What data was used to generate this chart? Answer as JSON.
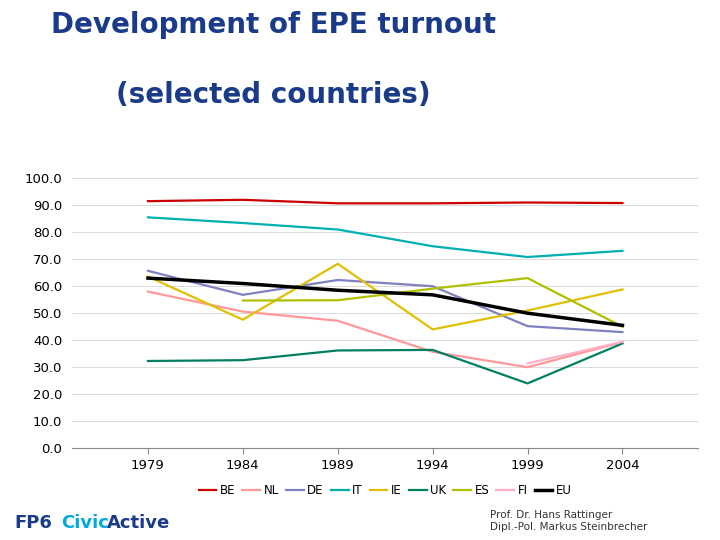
{
  "title_line1": "Development of EPE turnout",
  "title_line2": "(selected countries)",
  "years": [
    1979,
    1984,
    1989,
    1994,
    1999,
    2004
  ],
  "series": {
    "BE": {
      "color": "#cc0000",
      "values": [
        91.5,
        92.0,
        90.7,
        90.7,
        91.0,
        90.8
      ]
    },
    "NL": {
      "color": "#ff9999",
      "values": [
        58.0,
        50.6,
        47.2,
        35.7,
        30.0,
        39.3
      ]
    },
    "DE": {
      "color": "#8080c0",
      "values": [
        65.7,
        56.8,
        62.3,
        60.0,
        45.2,
        43.0
      ]
    },
    "IT": {
      "color": "#00b0b0",
      "values": [
        85.5,
        83.4,
        81.0,
        74.8,
        70.8,
        73.1
      ]
    },
    "IE": {
      "color": "#e0c000",
      "values": [
        63.6,
        47.6,
        68.3,
        44.0,
        51.0,
        58.8
      ]
    },
    "UK": {
      "color": "#008060",
      "values": [
        32.3,
        32.6,
        36.2,
        36.4,
        24.0,
        38.8
      ]
    },
    "ES": {
      "color": "#b0c000",
      "values": [
        null,
        54.7,
        54.8,
        59.1,
        63.0,
        45.0
      ]
    },
    "FI": {
      "color": "#ffb0c8",
      "values": [
        null,
        null,
        null,
        null,
        31.4,
        39.4
      ]
    },
    "EU": {
      "color": "#000000",
      "values": [
        63.0,
        61.0,
        58.5,
        56.8,
        50.0,
        45.5
      ]
    }
  },
  "ylim": [
    0,
    100
  ],
  "yticks": [
    0,
    10,
    20,
    30,
    40,
    50,
    60,
    70,
    80,
    90,
    100
  ],
  "ytick_labels": [
    "0.0",
    "10.0",
    "20.0",
    "30.0",
    "40.0",
    "50.0",
    "60.0",
    "70.0",
    "80.0",
    "90.0",
    "100.0"
  ],
  "xticks": [
    1979,
    1984,
    1989,
    1994,
    1999,
    2004
  ],
  "xlim": [
    1975,
    2008
  ],
  "background_color": "#ffffff",
  "title_color": "#1a3a8a",
  "title_fontsize": 20,
  "fp6_color": "#1a3a8a",
  "civic_color": "#00aadd",
  "active_color": "#1a3a8a",
  "author_text": "Prof. Dr. Hans Rattinger\nDipl.-Pol. Markus Steinbrecher",
  "legend_labels": [
    "BE",
    "NL",
    "DE",
    "IT",
    "IE",
    "UK",
    "ES",
    "FI",
    "EU"
  ],
  "legend_colors": [
    "#cc0000",
    "#ff9999",
    "#8080c0",
    "#00b0b0",
    "#e0c000",
    "#008060",
    "#b0c000",
    "#ffb0c8",
    "#000000"
  ]
}
